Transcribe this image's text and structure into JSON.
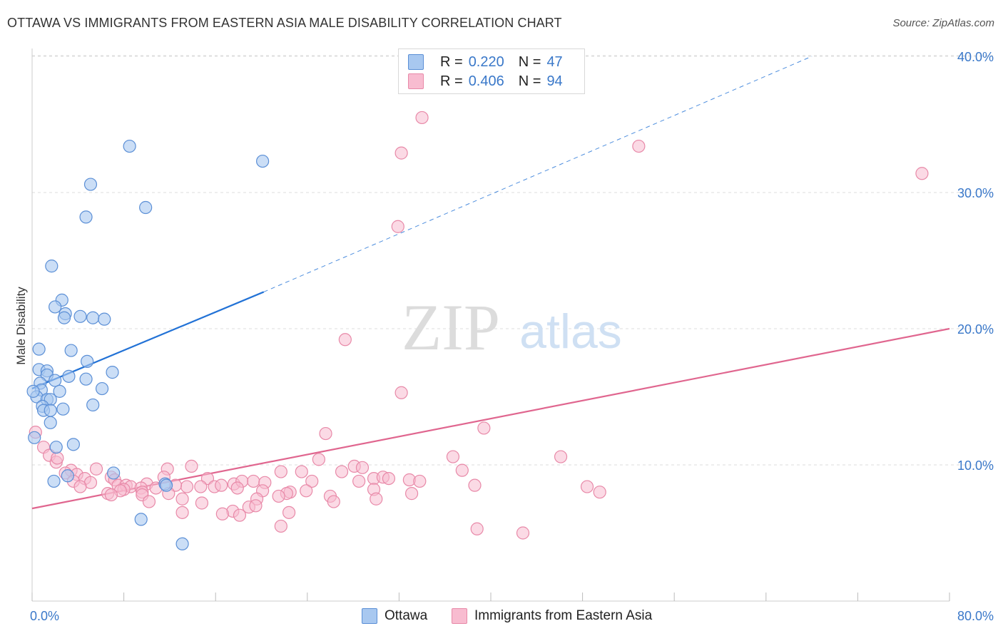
{
  "header": {
    "title": "OTTAWA VS IMMIGRANTS FROM EASTERN ASIA MALE DISABILITY CORRELATION CHART",
    "source": "Source: ZipAtlas.com"
  },
  "legend": {
    "rows": [
      {
        "r_label": "R =",
        "r_value": "0.220",
        "n_label": "N =",
        "n_value": "47"
      },
      {
        "r_label": "R =",
        "r_value": "0.406",
        "n_label": "N =",
        "n_value": "94"
      }
    ]
  },
  "watermark": {
    "zip": "ZIP",
    "atlas": "atlas"
  },
  "colors": {
    "ottawa_fill": "#a8c8f0",
    "ottawa_stroke": "#5b8fd6",
    "ottawa_line": "#2272d6",
    "asia_fill": "#f8bcd0",
    "asia_stroke": "#e889a8",
    "asia_line": "#e0668f",
    "tick_label": "#3a78c9",
    "grid": "#dddddd"
  },
  "chart_data": {
    "type": "scatter",
    "title": "OTTAWA VS IMMIGRANTS FROM EASTERN ASIA MALE DISABILITY CORRELATION CHART",
    "xlabel": "",
    "ylabel": "Male Disability",
    "xlim": [
      0,
      80
    ],
    "ylim": [
      0,
      42
    ],
    "x_tick_labels": [
      "0.0%",
      "80.0%"
    ],
    "y_ticks": [
      10,
      20,
      30,
      40
    ],
    "y_tick_labels": [
      "10.0%",
      "20.0%",
      "30.0%",
      "40.0%"
    ],
    "grid": "horizontal dashed",
    "legend_position": "top-center",
    "series": [
      {
        "name": "Ottawa",
        "points": [
          [
            8.5,
            33.4
          ],
          [
            20.1,
            32.3
          ],
          [
            5.1,
            30.6
          ],
          [
            9.9,
            28.9
          ],
          [
            4.7,
            28.2
          ],
          [
            1.7,
            24.6
          ],
          [
            2.6,
            22.1
          ],
          [
            2.0,
            21.6
          ],
          [
            2.9,
            21.1
          ],
          [
            2.8,
            20.8
          ],
          [
            4.2,
            20.9
          ],
          [
            5.3,
            20.8
          ],
          [
            6.3,
            20.7
          ],
          [
            0.6,
            18.5
          ],
          [
            3.4,
            18.4
          ],
          [
            4.8,
            17.6
          ],
          [
            0.6,
            17.0
          ],
          [
            1.3,
            16.9
          ],
          [
            7.0,
            16.8
          ],
          [
            1.3,
            16.6
          ],
          [
            3.2,
            16.5
          ],
          [
            4.7,
            16.3
          ],
          [
            2.0,
            16.2
          ],
          [
            0.7,
            16.0
          ],
          [
            0.8,
            15.5
          ],
          [
            6.1,
            15.6
          ],
          [
            2.4,
            15.4
          ],
          [
            0.4,
            15.0
          ],
          [
            1.3,
            14.8
          ],
          [
            1.6,
            14.8
          ],
          [
            0.9,
            14.3
          ],
          [
            5.3,
            14.4
          ],
          [
            1.0,
            14.0
          ],
          [
            1.6,
            14.0
          ],
          [
            2.7,
            14.1
          ],
          [
            1.6,
            13.1
          ],
          [
            0.2,
            12.0
          ],
          [
            2.1,
            11.3
          ],
          [
            3.6,
            11.5
          ],
          [
            7.1,
            9.4
          ],
          [
            3.1,
            9.2
          ],
          [
            1.9,
            8.8
          ],
          [
            11.6,
            8.6
          ],
          [
            11.7,
            8.5
          ],
          [
            9.5,
            6.0
          ],
          [
            13.1,
            4.2
          ],
          [
            0.1,
            15.4
          ]
        ]
      },
      {
        "name": "Immigrants from Eastern Asia",
        "points": [
          [
            34.0,
            35.5
          ],
          [
            32.2,
            32.9
          ],
          [
            52.9,
            33.4
          ],
          [
            77.6,
            31.4
          ],
          [
            31.9,
            27.5
          ],
          [
            27.3,
            19.2
          ],
          [
            32.2,
            15.3
          ],
          [
            25.6,
            12.3
          ],
          [
            39.4,
            12.7
          ],
          [
            0.3,
            12.4
          ],
          [
            1.0,
            11.3
          ],
          [
            1.5,
            10.7
          ],
          [
            2.1,
            10.2
          ],
          [
            2.2,
            10.5
          ],
          [
            36.7,
            10.6
          ],
          [
            46.1,
            10.6
          ],
          [
            25.0,
            10.4
          ],
          [
            28.1,
            9.9
          ],
          [
            28.8,
            9.8
          ],
          [
            5.6,
            9.7
          ],
          [
            11.8,
            9.7
          ],
          [
            13.9,
            9.9
          ],
          [
            3.4,
            9.6
          ],
          [
            2.9,
            9.4
          ],
          [
            3.9,
            9.3
          ],
          [
            21.7,
            9.5
          ],
          [
            23.5,
            9.5
          ],
          [
            27.0,
            9.5
          ],
          [
            37.5,
            9.6
          ],
          [
            4.6,
            9.0
          ],
          [
            6.9,
            9.1
          ],
          [
            11.5,
            9.1
          ],
          [
            15.3,
            9.0
          ],
          [
            29.8,
            9.0
          ],
          [
            30.6,
            9.1
          ],
          [
            31.1,
            9.0
          ],
          [
            32.9,
            8.9
          ],
          [
            7.2,
            8.9
          ],
          [
            3.6,
            8.8
          ],
          [
            5.1,
            8.7
          ],
          [
            7.5,
            8.5
          ],
          [
            10.0,
            8.6
          ],
          [
            8.2,
            8.5
          ],
          [
            8.6,
            8.4
          ],
          [
            9.5,
            8.3
          ],
          [
            14.7,
            8.4
          ],
          [
            15.9,
            8.4
          ],
          [
            16.5,
            8.5
          ],
          [
            17.6,
            8.6
          ],
          [
            18.3,
            8.8
          ],
          [
            19.3,
            8.8
          ],
          [
            20.3,
            8.7
          ],
          [
            24.4,
            8.8
          ],
          [
            28.5,
            8.8
          ],
          [
            17.9,
            8.3
          ],
          [
            13.5,
            8.4
          ],
          [
            12.5,
            8.5
          ],
          [
            10.8,
            8.3
          ],
          [
            8.0,
            8.2
          ],
          [
            4.2,
            8.4
          ],
          [
            7.7,
            8.1
          ],
          [
            9.6,
            8.0
          ],
          [
            20.1,
            8.1
          ],
          [
            22.5,
            8.0
          ],
          [
            23.9,
            8.1
          ],
          [
            29.8,
            8.2
          ],
          [
            38.6,
            8.5
          ],
          [
            48.4,
            8.4
          ],
          [
            49.5,
            8.0
          ],
          [
            6.6,
            7.9
          ],
          [
            6.9,
            7.8
          ],
          [
            9.6,
            7.8
          ],
          [
            11.9,
            7.9
          ],
          [
            22.2,
            7.9
          ],
          [
            19.6,
            7.5
          ],
          [
            21.5,
            7.7
          ],
          [
            26.0,
            7.7
          ],
          [
            14.8,
            7.2
          ],
          [
            10.2,
            7.3
          ],
          [
            13.1,
            7.5
          ],
          [
            26.3,
            7.3
          ],
          [
            30.0,
            7.5
          ],
          [
            33.1,
            7.9
          ],
          [
            17.5,
            6.6
          ],
          [
            18.1,
            6.3
          ],
          [
            18.9,
            6.9
          ],
          [
            19.5,
            7.0
          ],
          [
            13.1,
            6.5
          ],
          [
            22.4,
            6.5
          ],
          [
            21.7,
            5.5
          ],
          [
            38.8,
            5.3
          ],
          [
            42.8,
            5.0
          ],
          [
            33.8,
            8.8
          ],
          [
            16.6,
            6.4
          ]
        ]
      }
    ],
    "trendlines": [
      {
        "series": "Ottawa",
        "solid_from": [
          0,
          15.6
        ],
        "solid_to": [
          20.2,
          22.7
        ],
        "dashed_to": [
          68.0,
          40.0
        ]
      },
      {
        "series": "Immigrants from Eastern Asia",
        "from": [
          0,
          6.8
        ],
        "to": [
          80,
          20.0
        ]
      }
    ]
  },
  "bottom_legend": [
    {
      "label": "Ottawa"
    },
    {
      "label": "Immigrants from Eastern Asia"
    }
  ]
}
